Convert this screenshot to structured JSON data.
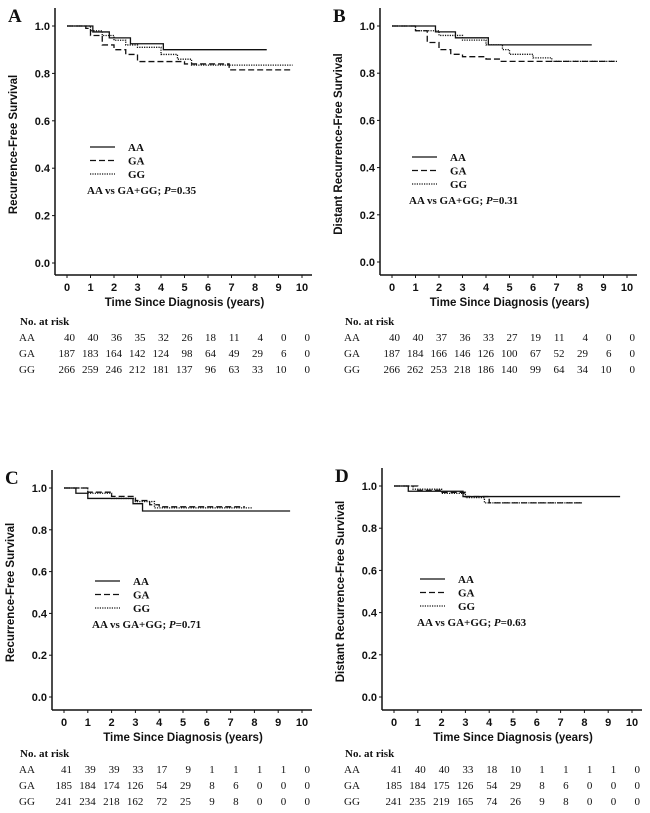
{
  "chart_data": [
    {
      "panel": "A",
      "type": "line",
      "ylabel": "Recurrence-Free Survival",
      "xlabel": "Time Since Diagnosis (years)",
      "xlim": [
        0,
        10
      ],
      "ylim": [
        0,
        1
      ],
      "xticks": [
        "0",
        "1",
        "2",
        "3",
        "4",
        "5",
        "6",
        "7",
        "8",
        "9",
        "10"
      ],
      "yticks": [
        "0.0",
        "0.2",
        "0.4",
        "0.6",
        "0.8",
        "1.0"
      ],
      "legend": [
        "AA",
        "GA",
        "GG"
      ],
      "annotation": "AA vs GA+GG; ",
      "p_label": "P",
      "p_value": "=0.35",
      "series": [
        {
          "name": "AA",
          "style": "solid",
          "steps": [
            [
              0,
              1
            ],
            [
              1.1,
              0.975
            ],
            [
              1.8,
              0.95
            ],
            [
              2.7,
              0.925
            ],
            [
              4.1,
              0.9
            ]
          ],
          "end": 8.5
        },
        {
          "name": "GA",
          "style": "dashed",
          "steps": [
            [
              0,
              1
            ],
            [
              0.8,
              0.99
            ],
            [
              1.0,
              0.96
            ],
            [
              1.5,
              0.92
            ],
            [
              2,
              0.9
            ],
            [
              2.5,
              0.88
            ],
            [
              3,
              0.85
            ],
            [
              5,
              0.84
            ],
            [
              6.9,
              0.815
            ]
          ],
          "end": 9.6
        },
        {
          "name": "GG",
          "style": "dotted",
          "steps": [
            [
              0,
              1
            ],
            [
              1,
              0.98
            ],
            [
              1.5,
              0.96
            ],
            [
              2,
              0.94
            ],
            [
              2.5,
              0.92
            ],
            [
              3,
              0.91
            ],
            [
              4,
              0.88
            ],
            [
              4.7,
              0.86
            ],
            [
              5.3,
              0.835
            ]
          ],
          "end": 9.6
        }
      ],
      "risk_table": {
        "title": "No. at risk",
        "rows": [
          {
            "label": "AA",
            "values": [
              "40",
              "40",
              "36",
              "35",
              "32",
              "26",
              "18",
              "11",
              "4",
              "0",
              "0"
            ]
          },
          {
            "label": "GA",
            "values": [
              "187",
              "183",
              "164",
              "142",
              "124",
              "98",
              "64",
              "49",
              "29",
              "6",
              "0"
            ]
          },
          {
            "label": "GG",
            "values": [
              "266",
              "259",
              "246",
              "212",
              "181",
              "137",
              "96",
              "63",
              "33",
              "10",
              "0"
            ]
          }
        ]
      }
    },
    {
      "panel": "B",
      "type": "line",
      "ylabel": "Distant Recurrence-Free Survival",
      "xlabel": "Time Since Diagnosis (years)",
      "xlim": [
        0,
        10
      ],
      "ylim": [
        0,
        1
      ],
      "xticks": [
        "0",
        "1",
        "2",
        "3",
        "4",
        "5",
        "6",
        "7",
        "8",
        "9",
        "10"
      ],
      "yticks": [
        "0.0",
        "0.2",
        "0.4",
        "0.6",
        "0.8",
        "1.0"
      ],
      "legend": [
        "AA",
        "GA",
        "GG"
      ],
      "annotation": "AA vs GA+GG; ",
      "p_label": "P",
      "p_value": "=0.31",
      "series": [
        {
          "name": "AA",
          "style": "solid",
          "steps": [
            [
              0,
              1
            ],
            [
              1.85,
              0.975
            ],
            [
              2.7,
              0.95
            ],
            [
              4.1,
              0.92
            ]
          ],
          "end": 8.5
        },
        {
          "name": "GA",
          "style": "dashed",
          "steps": [
            [
              0,
              1
            ],
            [
              1,
              0.98
            ],
            [
              1.5,
              0.93
            ],
            [
              2,
              0.9
            ],
            [
              2.5,
              0.88
            ],
            [
              3,
              0.87
            ],
            [
              4,
              0.86
            ],
            [
              4.6,
              0.85
            ]
          ],
          "end": 9.6
        },
        {
          "name": "GG",
          "style": "dotted",
          "steps": [
            [
              0,
              1
            ],
            [
              1,
              0.98
            ],
            [
              2,
              0.96
            ],
            [
              3,
              0.94
            ],
            [
              4,
              0.92
            ],
            [
              4.7,
              0.9
            ],
            [
              5,
              0.88
            ],
            [
              6,
              0.865
            ],
            [
              6.8,
              0.85
            ]
          ],
          "end": 9.6
        }
      ],
      "risk_table": {
        "title": "No. at risk",
        "rows": [
          {
            "label": "AA",
            "values": [
              "40",
              "40",
              "37",
              "36",
              "33",
              "27",
              "19",
              "11",
              "4",
              "0",
              "0"
            ]
          },
          {
            "label": "GA",
            "values": [
              "187",
              "184",
              "166",
              "146",
              "126",
              "100",
              "67",
              "52",
              "29",
              "6",
              "0"
            ]
          },
          {
            "label": "GG",
            "values": [
              "266",
              "262",
              "253",
              "218",
              "186",
              "140",
              "99",
              "64",
              "34",
              "10",
              "0"
            ]
          }
        ]
      }
    },
    {
      "panel": "C",
      "type": "line",
      "ylabel": "Recurrence-Free Survival",
      "xlabel": "Time Since Diagnosis (years)",
      "xlim": [
        0,
        10
      ],
      "ylim": [
        0,
        1
      ],
      "xticks": [
        "0",
        "1",
        "2",
        "3",
        "4",
        "5",
        "6",
        "7",
        "8",
        "9",
        "10"
      ],
      "yticks": [
        "0.0",
        "0.2",
        "0.4",
        "0.6",
        "0.8",
        "1.0"
      ],
      "legend": [
        "AA",
        "GA",
        "GG"
      ],
      "annotation": "AA vs GA+GG; ",
      "p_label": "P",
      "p_value": "=0.71",
      "series": [
        {
          "name": "AA",
          "style": "solid",
          "steps": [
            [
              0,
              1
            ],
            [
              0.5,
              0.975
            ],
            [
              1,
              0.95
            ],
            [
              2.9,
              0.925
            ],
            [
              3.3,
              0.89
            ]
          ],
          "end": 9.5
        },
        {
          "name": "GA",
          "style": "dashed",
          "steps": [
            [
              0,
              1
            ],
            [
              1,
              0.98
            ],
            [
              2,
              0.96
            ],
            [
              3,
              0.94
            ],
            [
              3.6,
              0.92
            ],
            [
              4,
              0.91
            ]
          ],
          "end": 7.6
        },
        {
          "name": "GG",
          "style": "dotted",
          "steps": [
            [
              0,
              1
            ],
            [
              1,
              0.975
            ],
            [
              2,
              0.95
            ],
            [
              3,
              0.935
            ],
            [
              3.8,
              0.905
            ]
          ],
          "end": 7.9
        }
      ],
      "risk_table": {
        "title": "No. at risk",
        "rows": [
          {
            "label": "AA",
            "values": [
              "41",
              "39",
              "39",
              "33",
              "17",
              "9",
              "1",
              "1",
              "1",
              "1",
              "0"
            ]
          },
          {
            "label": "GA",
            "values": [
              "185",
              "184",
              "174",
              "126",
              "54",
              "29",
              "8",
              "6",
              "0",
              "0",
              "0"
            ]
          },
          {
            "label": "GG",
            "values": [
              "241",
              "234",
              "218",
              "162",
              "72",
              "25",
              "9",
              "8",
              "0",
              "0",
              "0"
            ]
          }
        ]
      }
    },
    {
      "panel": "D",
      "type": "line",
      "ylabel": "Distant Recurrence-Free Survival",
      "xlabel": "Time Since Diagnosis (years)",
      "xlim": [
        0,
        10
      ],
      "ylim": [
        0,
        1
      ],
      "xticks": [
        "0",
        "1",
        "2",
        "3",
        "4",
        "5",
        "6",
        "7",
        "8",
        "9",
        "10"
      ],
      "yticks": [
        "0.0",
        "0.2",
        "0.4",
        "0.6",
        "0.8",
        "1.0"
      ],
      "legend": [
        "AA",
        "GA",
        "GG"
      ],
      "annotation": "AA vs GA+GG; ",
      "p_label": "P",
      "p_value": "=0.63",
      "series": [
        {
          "name": "AA",
          "style": "solid",
          "steps": [
            [
              0,
              1
            ],
            [
              0.6,
              0.975
            ],
            [
              2.9,
              0.95
            ]
          ],
          "end": 9.5
        },
        {
          "name": "GA",
          "style": "dashed",
          "steps": [
            [
              0,
              1
            ],
            [
              1,
              0.98
            ],
            [
              2,
              0.97
            ],
            [
              3,
              0.95
            ],
            [
              4,
              0.92
            ]
          ],
          "end": 7.9
        },
        {
          "name": "GG",
          "style": "dotted",
          "steps": [
            [
              0,
              1
            ],
            [
              0.8,
              0.985
            ],
            [
              2,
              0.965
            ],
            [
              3,
              0.945
            ],
            [
              3.8,
              0.92
            ]
          ],
          "end": 7.9
        }
      ],
      "risk_table": {
        "title": "No. at risk",
        "rows": [
          {
            "label": "AA",
            "values": [
              "41",
              "40",
              "40",
              "33",
              "18",
              "10",
              "1",
              "1",
              "1",
              "1",
              "0"
            ]
          },
          {
            "label": "GA",
            "values": [
              "185",
              "184",
              "175",
              "126",
              "54",
              "29",
              "8",
              "6",
              "0",
              "0",
              "0"
            ]
          },
          {
            "label": "GG",
            "values": [
              "241",
              "235",
              "219",
              "165",
              "74",
              "26",
              "9",
              "8",
              "0",
              "0",
              "0"
            ]
          }
        ]
      }
    }
  ]
}
